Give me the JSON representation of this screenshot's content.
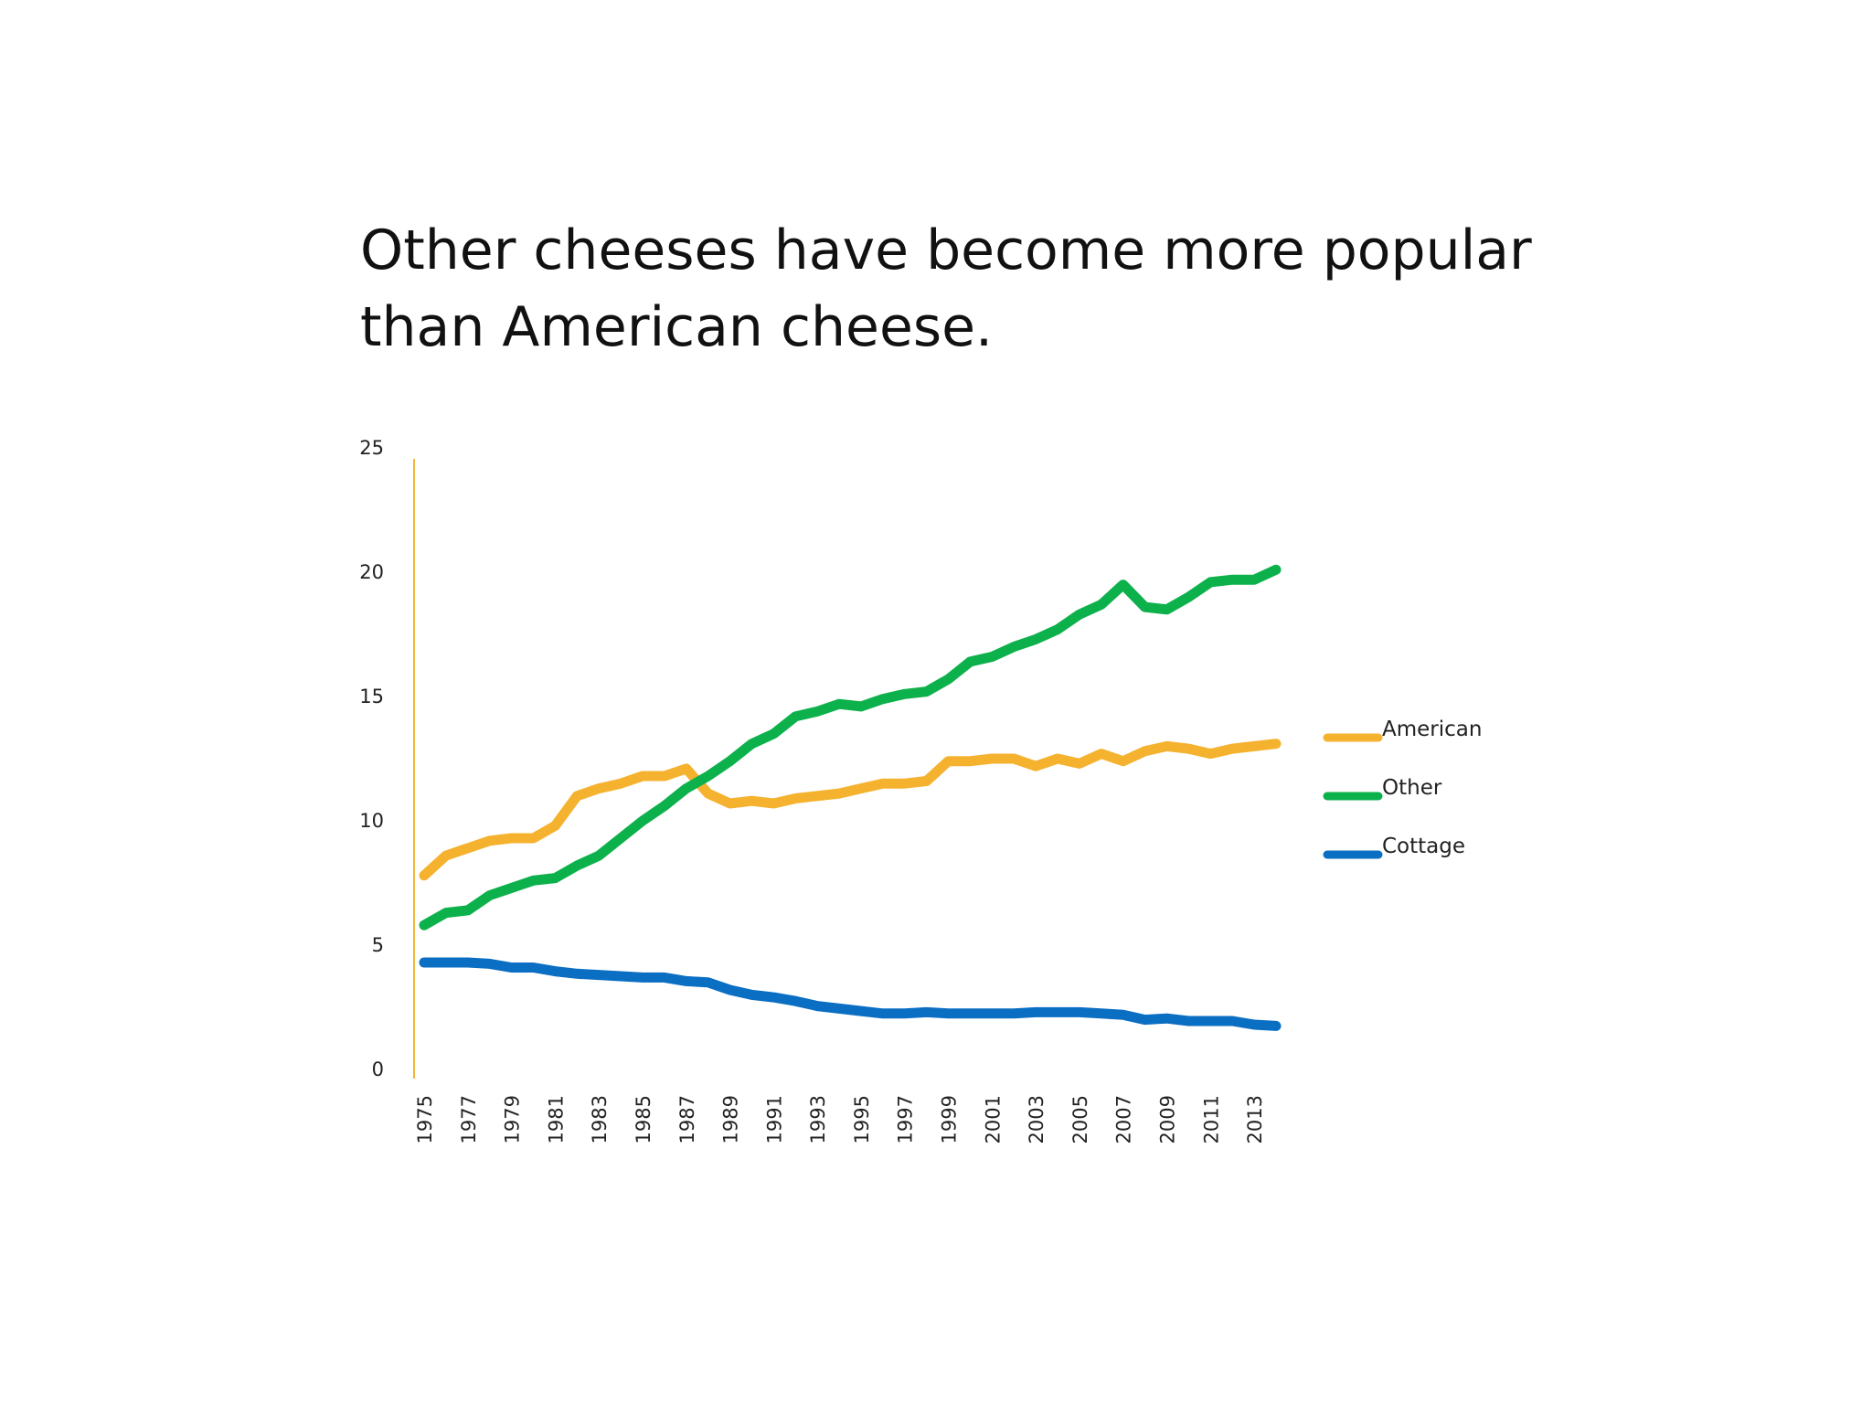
{
  "title_lines": [
    "Other cheeses have become more popular",
    "than American cheese."
  ],
  "colors": {
    "American": "#F5B22F",
    "Other": "#0DB14B",
    "Cottage": "#0A6EC2",
    "axis": "#F0B63A"
  },
  "chart_data": {
    "type": "line",
    "x": [
      1975,
      1976,
      1977,
      1978,
      1979,
      1980,
      1981,
      1982,
      1983,
      1984,
      1985,
      1986,
      1987,
      1988,
      1989,
      1990,
      1991,
      1992,
      1993,
      1994,
      1995,
      1996,
      1997,
      1998,
      1999,
      2000,
      2001,
      2002,
      2003,
      2004,
      2005,
      2006,
      2007,
      2008,
      2009,
      2010,
      2011,
      2012,
      2013,
      2014
    ],
    "x_tick_labels": [
      "1975",
      "1977",
      "1979",
      "1981",
      "1983",
      "1985",
      "1987",
      "1989",
      "1991",
      "1993",
      "1995",
      "1997",
      "1999",
      "2001",
      "2003",
      "2005",
      "2007",
      "2009",
      "2011",
      "2013"
    ],
    "y_tick_labels": [
      "0",
      "5",
      "10",
      "15",
      "20",
      "25"
    ],
    "ylim": [
      0,
      25
    ],
    "grid": false,
    "legend_position": "right",
    "series": [
      {
        "name": "American",
        "values": [
          7.8,
          8.6,
          8.9,
          9.2,
          9.3,
          9.3,
          9.8,
          11.0,
          11.3,
          11.5,
          11.8,
          11.8,
          12.1,
          11.1,
          10.7,
          10.8,
          10.7,
          10.9,
          11.0,
          11.1,
          11.3,
          11.5,
          11.5,
          11.6,
          12.4,
          12.4,
          12.5,
          12.5,
          12.2,
          12.5,
          12.3,
          12.7,
          12.4,
          12.8,
          13.0,
          12.9,
          12.7,
          12.9,
          13.0,
          13.1
        ]
      },
      {
        "name": "Other",
        "values": [
          5.8,
          6.3,
          6.4,
          7.0,
          7.3,
          7.6,
          7.7,
          8.2,
          8.6,
          9.3,
          10.0,
          10.6,
          11.3,
          11.8,
          12.4,
          13.1,
          13.5,
          14.2,
          14.4,
          14.7,
          14.6,
          14.9,
          15.1,
          15.2,
          15.7,
          16.4,
          16.6,
          17.0,
          17.3,
          17.7,
          18.3,
          18.7,
          19.5,
          18.6,
          18.5,
          19.0,
          19.6,
          19.7,
          19.7,
          20.1
        ]
      },
      {
        "name": "Cottage",
        "values": [
          4.3,
          4.3,
          4.3,
          4.25,
          4.1,
          4.1,
          3.95,
          3.85,
          3.8,
          3.75,
          3.7,
          3.7,
          3.55,
          3.5,
          3.2,
          3.0,
          2.9,
          2.75,
          2.55,
          2.45,
          2.35,
          2.25,
          2.25,
          2.3,
          2.25,
          2.25,
          2.25,
          2.25,
          2.3,
          2.3,
          2.3,
          2.25,
          2.2,
          2.0,
          2.05,
          1.95,
          1.95,
          1.95,
          1.8,
          1.75
        ]
      }
    ]
  }
}
